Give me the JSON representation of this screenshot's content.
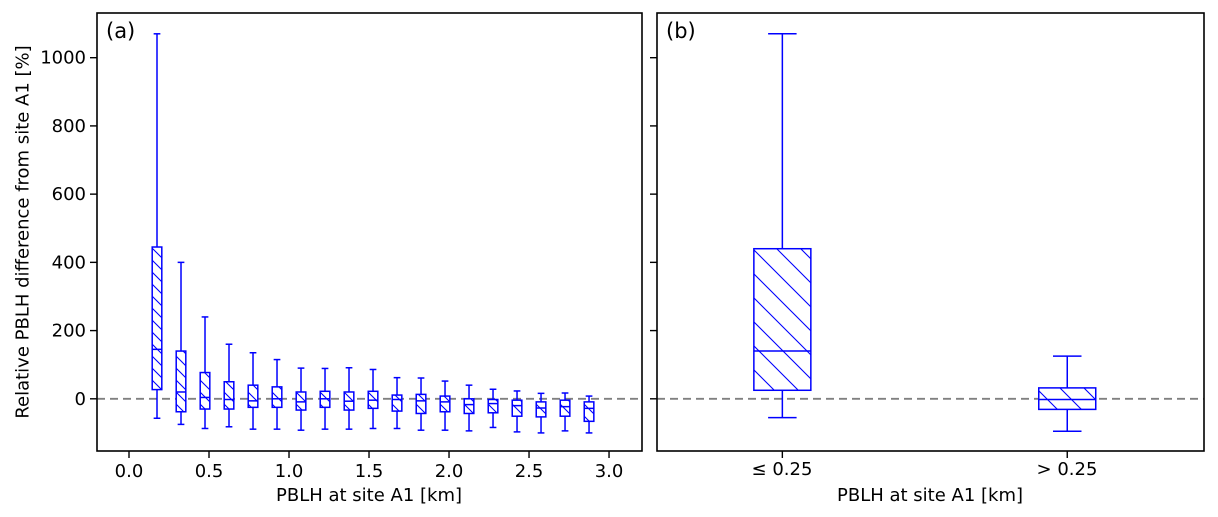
{
  "figure": {
    "background": "#ffffff",
    "box_color": "#0000ff",
    "zero_line_color": "#808080",
    "axis_color": "#000000",
    "ylabel": "Relative PBLH difference from site A1 [%]"
  },
  "chart_data": [
    {
      "type": "boxplot",
      "panel_label": "(a)",
      "xlabel": "PBLH at site A1 [km]",
      "ylabel": "Relative PBLH difference from site A1 [%]",
      "xlim": [
        -0.2,
        3.206
      ],
      "ylim": [
        -153,
        1131
      ],
      "grid": false,
      "hatch": "\\",
      "zero_line_y": 0,
      "box_width": 0.06,
      "xticks": {
        "values": [
          0.0,
          0.5,
          1.0,
          1.5,
          2.0,
          2.5,
          3.0
        ],
        "labels": [
          "0.0",
          "0.5",
          "1.0",
          "1.5",
          "2.0",
          "2.5",
          "3.0"
        ]
      },
      "yticks": {
        "values": [
          0,
          200,
          400,
          600,
          800,
          1000
        ],
        "labels": [
          "0",
          "200",
          "400",
          "600",
          "800",
          "1000"
        ]
      },
      "boxes": [
        {
          "x": 0.175,
          "whislo": -57,
          "q1": 27,
          "med": 145,
          "q3": 445,
          "whishi": 1070
        },
        {
          "x": 0.325,
          "whislo": -75,
          "q1": -38,
          "med": 20,
          "q3": 140,
          "whishi": 400
        },
        {
          "x": 0.475,
          "whislo": -87,
          "q1": -30,
          "med": 4,
          "q3": 77,
          "whishi": 240
        },
        {
          "x": 0.625,
          "whislo": -82,
          "q1": -30,
          "med": -2,
          "q3": 50,
          "whishi": 160
        },
        {
          "x": 0.775,
          "whislo": -89,
          "q1": -25,
          "med": -6,
          "q3": 40,
          "whishi": 135
        },
        {
          "x": 0.925,
          "whislo": -89,
          "q1": -25,
          "med": 0,
          "q3": 35,
          "whishi": 115
        },
        {
          "x": 1.075,
          "whislo": -92,
          "q1": -33,
          "med": -9,
          "q3": 20,
          "whishi": 90
        },
        {
          "x": 1.225,
          "whislo": -89,
          "q1": -25,
          "med": 0,
          "q3": 22,
          "whishi": 89
        },
        {
          "x": 1.375,
          "whislo": -89,
          "q1": -33,
          "med": -7,
          "q3": 20,
          "whishi": 91
        },
        {
          "x": 1.525,
          "whislo": -87,
          "q1": -28,
          "med": -4,
          "q3": 22,
          "whishi": 86
        },
        {
          "x": 1.675,
          "whislo": -87,
          "q1": -36,
          "med": -2,
          "q3": 11,
          "whishi": 62
        },
        {
          "x": 1.825,
          "whislo": -92,
          "q1": -43,
          "med": -6,
          "q3": 13,
          "whishi": 61
        },
        {
          "x": 1.975,
          "whislo": -92,
          "q1": -38,
          "med": -9,
          "q3": 8,
          "whishi": 52
        },
        {
          "x": 2.125,
          "whislo": -94,
          "q1": -43,
          "med": -17,
          "q3": 0,
          "whishi": 40
        },
        {
          "x": 2.275,
          "whislo": -84,
          "q1": -41,
          "med": -14,
          "q3": -2,
          "whishi": 28
        },
        {
          "x": 2.425,
          "whislo": -97,
          "q1": -51,
          "med": -20,
          "q3": -4,
          "whishi": 23
        },
        {
          "x": 2.575,
          "whislo": -100,
          "q1": -53,
          "med": -27,
          "q3": -9,
          "whishi": 16
        },
        {
          "x": 2.725,
          "whislo": -94,
          "q1": -51,
          "med": -23,
          "q3": -4,
          "whishi": 17
        },
        {
          "x": 2.875,
          "whislo": -100,
          "q1": -66,
          "med": -28,
          "q3": -9,
          "whishi": 8
        }
      ]
    },
    {
      "type": "boxplot",
      "panel_label": "(b)",
      "xlabel": "PBLH at site A1 [km]",
      "categories": [
        "≤ 0.25",
        "> 0.25"
      ],
      "xlim": [
        0.56,
        2.48
      ],
      "ylim": [
        -153,
        1131
      ],
      "grid": false,
      "hatch": "\\",
      "zero_line_y": 0,
      "box_width": 0.2,
      "xticks": {
        "values": [
          1,
          2
        ],
        "labels": [
          "≤ 0.25",
          "> 0.25"
        ]
      },
      "yticks": {
        "values": [
          0,
          200,
          400,
          600,
          800,
          1000
        ],
        "labels": [
          "",
          "",
          "",
          "",
          "",
          ""
        ]
      },
      "boxes": [
        {
          "x": 1,
          "whislo": -55,
          "q1": 25,
          "med": 140,
          "q3": 440,
          "whishi": 1070
        },
        {
          "x": 2,
          "whislo": -95,
          "q1": -31,
          "med": -2,
          "q3": 32,
          "whishi": 125
        }
      ]
    }
  ]
}
